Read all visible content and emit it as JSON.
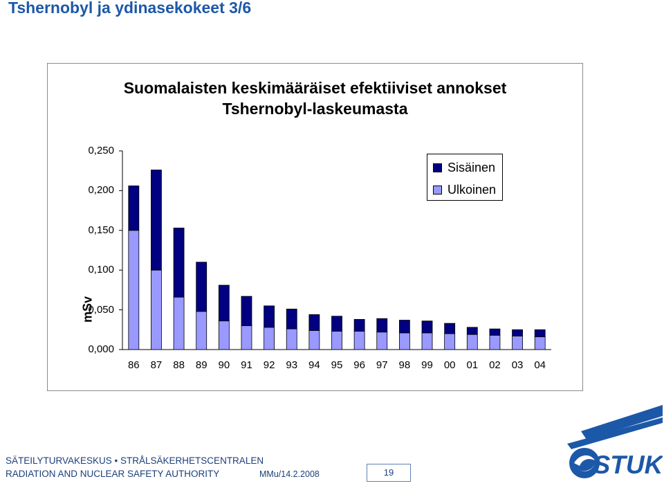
{
  "slide": {
    "title": "Tshernobyl ja ydinasekokeet  3/6"
  },
  "chart_data": {
    "type": "bar",
    "stacked": true,
    "title_lines": [
      "Suomalaisten keskimääräiset efektiiviset annokset",
      "Tshernobyl-laskeumasta"
    ],
    "categories": [
      "86",
      "87",
      "88",
      "89",
      "90",
      "91",
      "92",
      "93",
      "94",
      "95",
      "96",
      "97",
      "98",
      "99",
      "00",
      "01",
      "02",
      "03",
      "04"
    ],
    "series": [
      {
        "name": "Ulkoinen",
        "color": "#9999ff",
        "values": [
          0.15,
          0.1,
          0.066,
          0.048,
          0.036,
          0.03,
          0.028,
          0.026,
          0.024,
          0.023,
          0.023,
          0.022,
          0.021,
          0.021,
          0.02,
          0.019,
          0.018,
          0.017,
          0.016
        ]
      },
      {
        "name": "Sisäinen",
        "color": "#000080",
        "values": [
          0.056,
          0.126,
          0.087,
          0.062,
          0.045,
          0.037,
          0.027,
          0.025,
          0.02,
          0.019,
          0.015,
          0.017,
          0.016,
          0.015,
          0.013,
          0.009,
          0.008,
          0.008,
          0.009
        ]
      }
    ],
    "legend_order": [
      "Sisäinen",
      "Ulkoinen"
    ],
    "ylabel": "mSv",
    "xlabel": "",
    "ylim": [
      0,
      0.25
    ],
    "yticks": [
      "0,000",
      "0,050",
      "0,100",
      "0,150",
      "0,200",
      "0,250"
    ],
    "grid": false,
    "legend_position": "top-right"
  },
  "footer": {
    "line1": "SÄTEILYTURVAKESKUS • STRÅLSÄKERHETSCENTRALEN",
    "line2": "RADIATION AND NUCLEAR SAFETY AUTHORITY",
    "date": "MMu/14.2.2008",
    "page": "19",
    "logo_text": "STUK",
    "logo_color": "#1c58a8"
  }
}
